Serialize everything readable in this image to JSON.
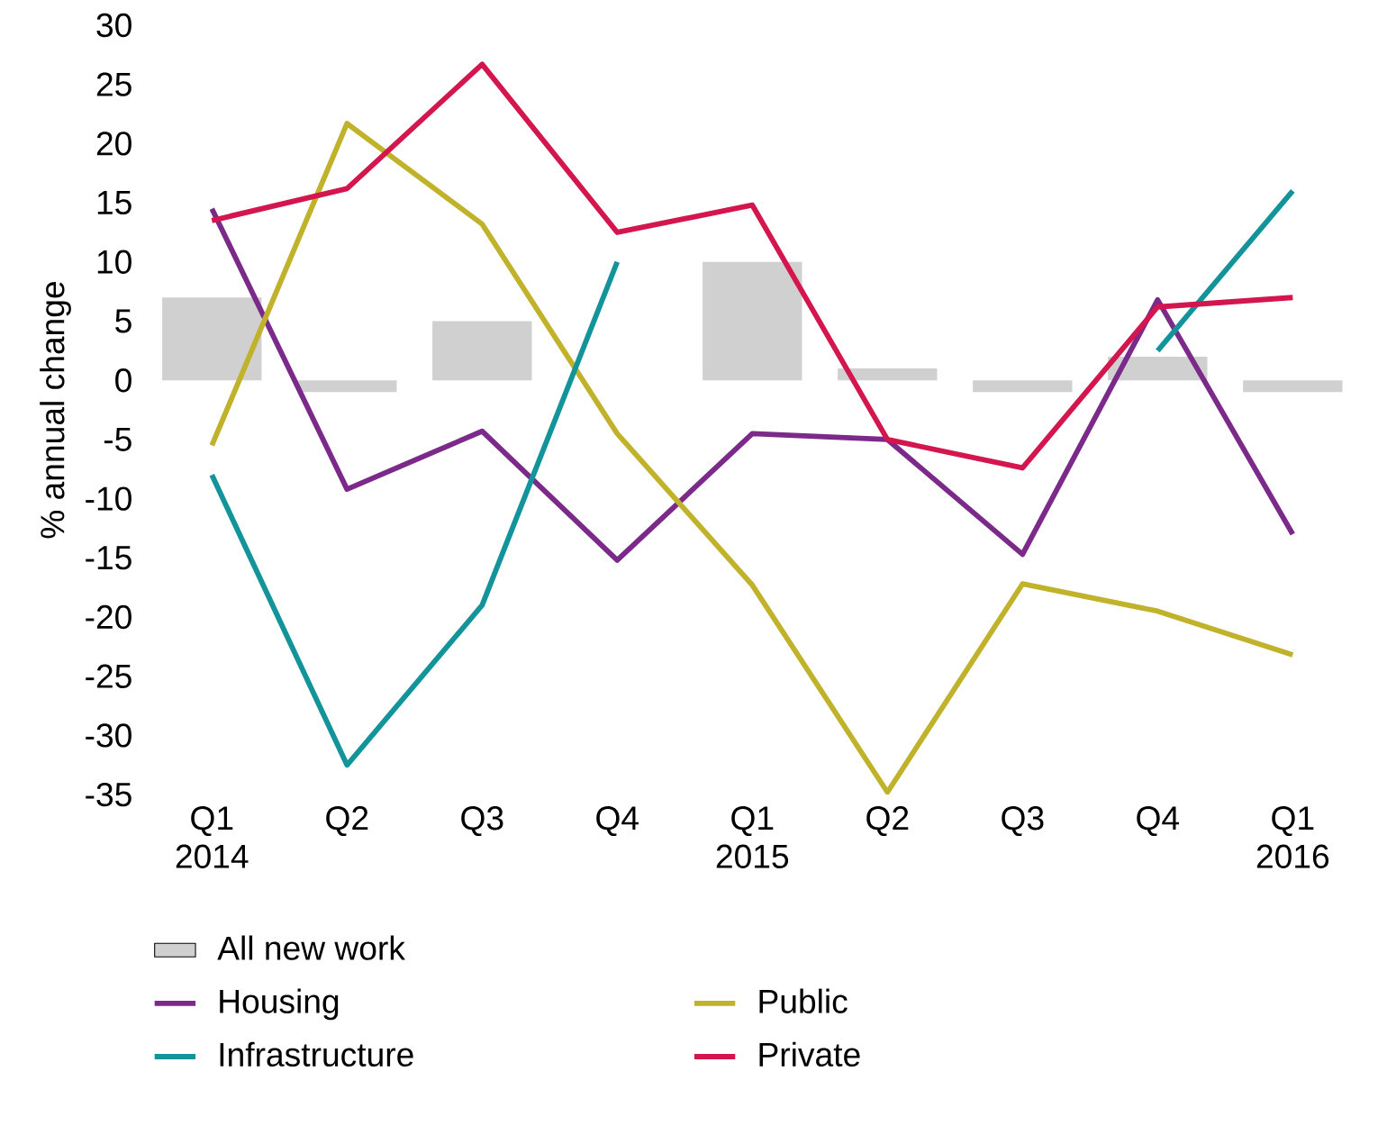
{
  "chart_data": {
    "type": "line",
    "ylabel": "% annual change",
    "categories": [
      "Q1 2014",
      "Q2",
      "Q3",
      "Q4",
      "Q1 2015",
      "Q2",
      "Q3",
      "Q4",
      "Q1 2016"
    ],
    "series": [
      {
        "name": "All new work",
        "type": "bar",
        "color": "#d0d0d0",
        "values": [
          7,
          -1,
          5,
          null,
          10,
          1,
          -1,
          2,
          -1
        ]
      },
      {
        "name": "Housing",
        "color": "#7b2a8a",
        "values": [
          14.5,
          -9.2,
          -4.3,
          -15.2,
          -4.5,
          -5,
          -14.7,
          6.8,
          -13
        ]
      },
      {
        "name": "Public",
        "color": "#c1b22c",
        "values": [
          -5.5,
          21.7,
          13.2,
          -4.5,
          -17.3,
          -34.8,
          -17.2,
          -19.5,
          -23.2
        ]
      },
      {
        "name": "Infrastructure",
        "color": "#13939a",
        "values": [
          -8,
          -32.5,
          -19,
          10,
          null,
          null,
          null,
          2.5,
          16
        ]
      },
      {
        "name": "Private",
        "color": "#d4164f",
        "values": [
          13.5,
          16.2,
          26.7,
          12.5,
          14.8,
          -5,
          -7.4,
          6.2,
          7
        ]
      }
    ],
    "ylim": [
      -35,
      30
    ],
    "yticks": [
      -35,
      -30,
      -25,
      -20,
      -15,
      -10,
      -5,
      0,
      5,
      10,
      15,
      20,
      25,
      30
    ],
    "grid": false,
    "legend": "bottom",
    "marker": "none",
    "line_style": "solid"
  }
}
